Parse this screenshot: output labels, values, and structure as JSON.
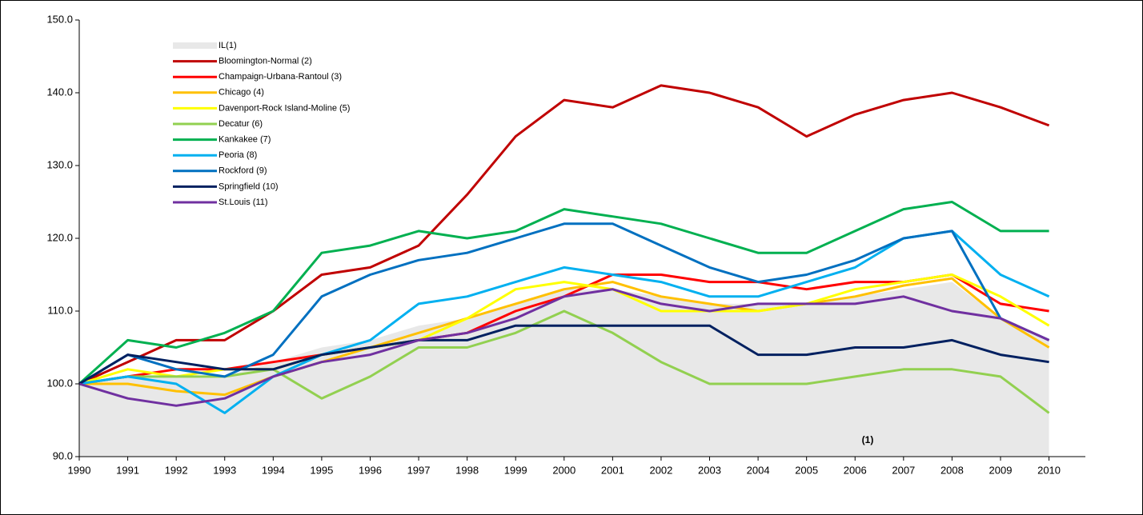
{
  "chart_data": {
    "type": "line",
    "x": [
      1990,
      1991,
      1992,
      1993,
      1994,
      1995,
      1996,
      1997,
      1998,
      1999,
      2000,
      2001,
      2002,
      2003,
      2004,
      2005,
      2006,
      2007,
      2008,
      2009,
      2010
    ],
    "xlim": [
      1990,
      2010.75
    ],
    "xticks": [
      1990,
      1991,
      1992,
      1993,
      1994,
      1995,
      1996,
      1997,
      1998,
      1999,
      2000,
      2001,
      2002,
      2003,
      2004,
      2005,
      2006,
      2007,
      2008,
      2009,
      2010
    ],
    "ylim": [
      90,
      150
    ],
    "yticks": [
      {
        "value": 90,
        "label": "90.0"
      },
      {
        "value": 100,
        "label": "100.0"
      },
      {
        "value": 110,
        "label": "110.0"
      },
      {
        "value": 120,
        "label": "120.0"
      },
      {
        "value": 130,
        "label": "130.0"
      },
      {
        "value": 140,
        "label": "140.0"
      },
      {
        "value": 150,
        "label": "150.0"
      }
    ],
    "grid": false,
    "legend": "upper left",
    "annotation": "(1)",
    "series": [
      {
        "name": "IL(1)",
        "kind": "area",
        "color": "#e8e8e8",
        "values": [
          100,
          101,
          101,
          101,
          103,
          105,
          106,
          108,
          109,
          111,
          113,
          113,
          112,
          111,
          111,
          111,
          112,
          113,
          114,
          109,
          106
        ]
      },
      {
        "name": "Bloomington-Normal (2)",
        "color": "#c00000",
        "values": [
          100,
          103,
          106,
          106,
          110,
          115,
          116,
          119,
          126,
          134,
          139,
          138,
          141,
          140,
          138,
          134,
          137,
          139,
          140,
          138,
          135.5
        ]
      },
      {
        "name": "Champaign-Urbana-Rantoul (3)",
        "color": "#ff0000",
        "values": [
          100,
          101,
          102,
          102,
          103,
          104,
          105,
          106,
          107,
          110,
          112,
          115,
          115,
          114,
          114,
          113,
          114,
          114,
          115,
          111,
          110
        ]
      },
      {
        "name": "Chicago (4)",
        "color": "#ffc000",
        "values": [
          100,
          100,
          99,
          98.5,
          101,
          103,
          105,
          107,
          109,
          111,
          113,
          114,
          112,
          111,
          110,
          111,
          112,
          113.5,
          114.5,
          109,
          105
        ]
      },
      {
        "name": "Davenport-Rock Island-Moline (5)",
        "color": "#ffff00",
        "values": [
          100,
          102,
          101,
          102,
          102,
          104,
          105,
          106,
          109,
          113,
          114,
          113,
          110,
          110,
          110,
          111,
          113,
          114,
          115,
          112,
          108
        ]
      },
      {
        "name": "Decatur (6)",
        "color": "#92d050",
        "values": [
          100,
          101,
          101,
          101,
          102,
          98,
          101,
          105,
          105,
          107,
          110,
          107,
          103,
          100,
          100,
          100,
          101,
          102,
          102,
          101,
          96
        ]
      },
      {
        "name": "Kankakee (7)",
        "color": "#00b050",
        "values": [
          100,
          106,
          105,
          107,
          110,
          118,
          119,
          121,
          120,
          121,
          124,
          123,
          122,
          120,
          118,
          118,
          121,
          124,
          125,
          121,
          121
        ]
      },
      {
        "name": "Peoria (8)",
        "color": "#00b0f0",
        "values": [
          100,
          101,
          100,
          96,
          101,
          104,
          106,
          111,
          112,
          114,
          116,
          115,
          114,
          112,
          112,
          114,
          116,
          120,
          121,
          115,
          112
        ]
      },
      {
        "name": "Rockford (9)",
        "color": "#0070c0",
        "values": [
          100,
          104,
          102,
          101,
          104,
          112,
          115,
          117,
          118,
          120,
          122,
          122,
          119,
          116,
          114,
          115,
          117,
          120,
          121,
          109,
          106
        ]
      },
      {
        "name": "Springfield (10)",
        "color": "#002060",
        "values": [
          100,
          104,
          103,
          102,
          102,
          104,
          105,
          106,
          106,
          108,
          108,
          108,
          108,
          108,
          104,
          104,
          105,
          105,
          106,
          104,
          103
        ]
      },
      {
        "name": "St.Louis (11)",
        "color": "#7030a0",
        "values": [
          100,
          98,
          97,
          98,
          101,
          103,
          104,
          106,
          107,
          109,
          112,
          113,
          111,
          110,
          111,
          111,
          111,
          112,
          110,
          109,
          106
        ]
      }
    ]
  }
}
